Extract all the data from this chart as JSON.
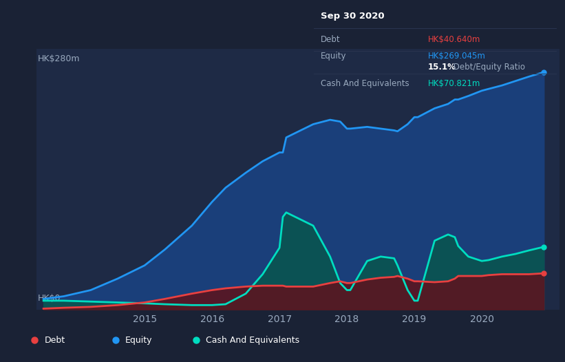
{
  "bg_color": "#1a2235",
  "plot_bg": "#1e2a45",
  "grid_color": "#263355",
  "equity_color": "#2196f3",
  "equity_fill": "#1a3f7a",
  "debt_color": "#e84040",
  "debt_fill": "#5a1520",
  "cash_color": "#00ddc0",
  "cash_fill": "#0a5550",
  "tooltip_bg": "#080c14",
  "tooltip_border": "#3a4560",
  "legend_border": "#354060",
  "text_muted": "#9aaabf",
  "text_white": "#ffffff",
  "title_box": {
    "date": "Sep 30 2020",
    "debt_label": "Debt",
    "debt_value": "HK$40.640m",
    "equity_label": "Equity",
    "equity_value": "HK$269.045m",
    "ratio_bold": "15.1%",
    "ratio_normal": " Debt/Equity Ratio",
    "cash_label": "Cash And Equivalents",
    "cash_value": "HK$70.821m"
  },
  "ylabel_top": "HK$280m",
  "ylabel_bottom": "HK$0",
  "x_ticks": [
    2015,
    2016,
    2017,
    2018,
    2019,
    2020
  ],
  "ymax": 280,
  "years": [
    2013.5,
    2013.8,
    2014.2,
    2014.6,
    2015.0,
    2015.3,
    2015.7,
    2016.0,
    2016.2,
    2016.5,
    2016.75,
    2017.0,
    2017.05,
    2017.1,
    2017.5,
    2017.75,
    2017.9,
    2018.0,
    2018.05,
    2018.3,
    2018.5,
    2018.7,
    2018.75,
    2018.9,
    2019.0,
    2019.05,
    2019.3,
    2019.5,
    2019.6,
    2019.65,
    2019.8,
    2020.0,
    2020.1,
    2020.3,
    2020.5,
    2020.7,
    2020.92
  ],
  "equity": [
    12,
    15,
    22,
    35,
    50,
    68,
    95,
    122,
    138,
    155,
    168,
    178,
    178,
    195,
    210,
    215,
    213,
    205,
    205,
    207,
    205,
    203,
    202,
    210,
    218,
    218,
    228,
    233,
    238,
    238,
    242,
    248,
    250,
    254,
    259,
    264,
    269
  ],
  "debt": [
    1,
    2,
    3,
    5,
    8,
    12,
    18,
    22,
    24,
    26,
    27,
    27,
    27,
    26,
    26,
    30,
    32,
    30,
    30,
    34,
    36,
    37,
    38,
    35,
    32,
    32,
    31,
    32,
    35,
    38,
    38,
    38,
    39,
    40,
    40,
    40,
    41
  ],
  "cash": [
    10,
    10,
    9,
    8,
    7,
    6,
    5,
    5,
    6,
    18,
    40,
    70,
    105,
    110,
    95,
    60,
    30,
    22,
    22,
    55,
    60,
    58,
    50,
    22,
    10,
    10,
    78,
    85,
    82,
    72,
    60,
    55,
    56,
    60,
    63,
    67,
    71
  ]
}
